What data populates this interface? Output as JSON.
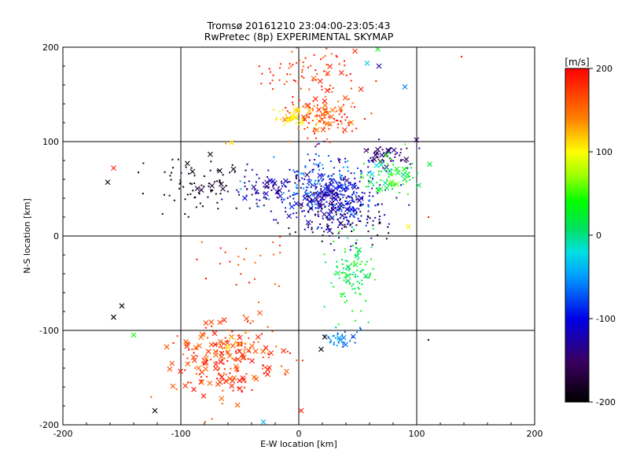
{
  "chart_data": {
    "type": "scatter",
    "title": "Tromsø 20161210 23:04:00-23:05:43",
    "subtitle": "RwPretec (8p) EXPERIMENTAL SKYMAP",
    "xlabel": "E-W location [km]",
    "ylabel": "N-S location [km]",
    "xlim": [
      -200,
      200
    ],
    "ylim": [
      -200,
      200
    ],
    "xticks": [
      -200,
      -100,
      0,
      100,
      200
    ],
    "yticks": [
      -200,
      -100,
      0,
      100,
      200
    ],
    "grid_lines": [
      -100,
      0,
      100
    ],
    "colorbar": {
      "label": "[m/s]",
      "range": [
        -200,
        200
      ],
      "ticks": [
        200,
        100,
        0,
        -100,
        -200
      ]
    },
    "clusters": [
      {
        "name": "north-red-top",
        "cx": 10,
        "cy": 175,
        "sx": 20,
        "sy": 15,
        "n": 70,
        "v": [
          150,
          200
        ],
        "marker": "dot"
      },
      {
        "name": "north-red-top-x",
        "cx": 30,
        "cy": 160,
        "sx": 20,
        "sy": 15,
        "n": 10,
        "v": [
          150,
          200
        ],
        "marker": "x"
      },
      {
        "name": "north-red-mid",
        "cx": 20,
        "cy": 128,
        "sx": 18,
        "sy": 12,
        "n": 100,
        "v": [
          140,
          200
        ],
        "marker": "dot"
      },
      {
        "name": "north-red-mid-x",
        "cx": 18,
        "cy": 130,
        "sx": 12,
        "sy": 8,
        "n": 22,
        "v": [
          140,
          200
        ],
        "marker": "x"
      },
      {
        "name": "north-yellow",
        "cx": -5,
        "cy": 125,
        "sx": 8,
        "sy": 5,
        "n": 30,
        "v": [
          90,
          120
        ],
        "marker": "dot"
      },
      {
        "name": "north-yellow-x",
        "cx": -3,
        "cy": 124,
        "sx": 7,
        "sy": 4,
        "n": 10,
        "v": [
          90,
          120
        ],
        "marker": "x"
      },
      {
        "name": "west-black",
        "cx": -80,
        "cy": 55,
        "sx": 18,
        "sy": 15,
        "n": 70,
        "v": [
          -200,
          -170
        ],
        "marker": "dot"
      },
      {
        "name": "west-black-x",
        "cx": -75,
        "cy": 60,
        "sx": 15,
        "sy": 12,
        "n": 10,
        "v": [
          -200,
          -170
        ],
        "marker": "x"
      },
      {
        "name": "mid-blue",
        "cx": -30,
        "cy": 48,
        "sx": 14,
        "sy": 8,
        "n": 60,
        "v": [
          -150,
          -100
        ],
        "marker": "dot"
      },
      {
        "name": "mid-blue-x",
        "cx": -25,
        "cy": 50,
        "sx": 12,
        "sy": 8,
        "n": 12,
        "v": [
          -150,
          -100
        ],
        "marker": "x"
      },
      {
        "name": "center-blue",
        "cx": 30,
        "cy": 40,
        "sx": 20,
        "sy": 20,
        "n": 300,
        "v": [
          -150,
          -80
        ],
        "marker": "dot"
      },
      {
        "name": "center-blue-x",
        "cx": 25,
        "cy": 40,
        "sx": 15,
        "sy": 15,
        "n": 60,
        "v": [
          -150,
          -80
        ],
        "marker": "x"
      },
      {
        "name": "center-cyan",
        "cx": 20,
        "cy": 55,
        "sx": 25,
        "sy": 18,
        "n": 100,
        "v": [
          -80,
          -40
        ],
        "marker": "dot"
      },
      {
        "name": "center-black",
        "cx": 35,
        "cy": 20,
        "sx": 25,
        "sy": 12,
        "n": 60,
        "v": [
          -200,
          -170
        ],
        "marker": "dot"
      },
      {
        "name": "ne-navy",
        "cx": 75,
        "cy": 85,
        "sx": 12,
        "sy": 8,
        "n": 40,
        "v": [
          -160,
          -120
        ],
        "marker": "dot"
      },
      {
        "name": "ne-navy-x",
        "cx": 75,
        "cy": 85,
        "sx": 10,
        "sy": 7,
        "n": 15,
        "v": [
          -160,
          -120
        ],
        "marker": "x"
      },
      {
        "name": "ne-green",
        "cx": 80,
        "cy": 65,
        "sx": 12,
        "sy": 10,
        "n": 50,
        "v": [
          0,
          60
        ],
        "marker": "dot"
      },
      {
        "name": "ne-green-x",
        "cx": 78,
        "cy": 65,
        "sx": 10,
        "sy": 10,
        "n": 20,
        "v": [
          -30,
          60
        ],
        "marker": "x"
      },
      {
        "name": "se-green",
        "cx": 45,
        "cy": -40,
        "sx": 10,
        "sy": 20,
        "n": 100,
        "v": [
          -10,
          50
        ],
        "marker": "dot"
      },
      {
        "name": "se-green-x",
        "cx": 45,
        "cy": -40,
        "sx": 8,
        "sy": 14,
        "n": 8,
        "v": [
          0,
          40
        ],
        "marker": "x"
      },
      {
        "name": "south-cyan",
        "cx": 35,
        "cy": -110,
        "sx": 10,
        "sy": 5,
        "n": 30,
        "v": [
          -80,
          -40
        ],
        "marker": "dot"
      },
      {
        "name": "south-cyan-x",
        "cx": 38,
        "cy": -110,
        "sx": 6,
        "sy": 3,
        "n": 5,
        "v": [
          -80,
          -40
        ],
        "marker": "x"
      },
      {
        "name": "sw-red",
        "cx": -60,
        "cy": -130,
        "sx": 22,
        "sy": 22,
        "n": 130,
        "v": [
          150,
          200
        ],
        "marker": "dot"
      },
      {
        "name": "sw-red-x",
        "cx": -65,
        "cy": -130,
        "sx": 22,
        "sy": 20,
        "n": 90,
        "v": [
          150,
          200
        ],
        "marker": "x"
      },
      {
        "name": "sw-yellow",
        "cx": -55,
        "cy": -115,
        "sx": 5,
        "sy": 5,
        "n": 12,
        "v": [
          100,
          120
        ],
        "marker": "dot"
      },
      {
        "name": "sparse-left",
        "cx": -45,
        "cy": -30,
        "sx": 20,
        "sy": 20,
        "n": 25,
        "v": [
          150,
          200
        ],
        "marker": "dot"
      }
    ],
    "outliers": [
      {
        "x": -162,
        "y": 57,
        "v": -200,
        "marker": "x"
      },
      {
        "x": -157,
        "y": 72,
        "v": 185,
        "marker": "x"
      },
      {
        "x": -150,
        "y": -74,
        "v": -200,
        "marker": "x"
      },
      {
        "x": -157,
        "y": -86,
        "v": -200,
        "marker": "x"
      },
      {
        "x": -140,
        "y": -105,
        "v": 40,
        "marker": "x"
      },
      {
        "x": -122,
        "y": -185,
        "v": -200,
        "marker": "x"
      },
      {
        "x": 2,
        "y": -185,
        "v": 190,
        "marker": "x"
      },
      {
        "x": 138,
        "y": 190,
        "v": 190,
        "marker": "dot"
      },
      {
        "x": 110,
        "y": -110,
        "v": -200,
        "marker": "dot"
      },
      {
        "x": 111,
        "y": 76,
        "v": 20,
        "marker": "x"
      },
      {
        "x": 110,
        "y": 20,
        "v": 190,
        "marker": "dot"
      },
      {
        "x": 93,
        "y": 10,
        "v": 105,
        "marker": "x"
      },
      {
        "x": 90,
        "y": 158,
        "v": -60,
        "marker": "x"
      },
      {
        "x": 58,
        "y": 183,
        "v": -30,
        "marker": "x"
      },
      {
        "x": 68,
        "y": 180,
        "v": -130,
        "marker": "x"
      },
      {
        "x": 67,
        "y": 198,
        "v": 30,
        "marker": "x"
      },
      {
        "x": -62,
        "y": 98,
        "v": 130,
        "marker": "dot"
      },
      {
        "x": -57,
        "y": 99,
        "v": 110,
        "marker": "x"
      },
      {
        "x": -30,
        "y": -197,
        "v": -40,
        "marker": "x"
      },
      {
        "x": 22,
        "y": -107,
        "v": -200,
        "marker": "x"
      },
      {
        "x": 19,
        "y": -120,
        "v": -200,
        "marker": "x"
      },
      {
        "x": -60,
        "y": -118,
        "v": 110,
        "marker": "x"
      }
    ]
  }
}
